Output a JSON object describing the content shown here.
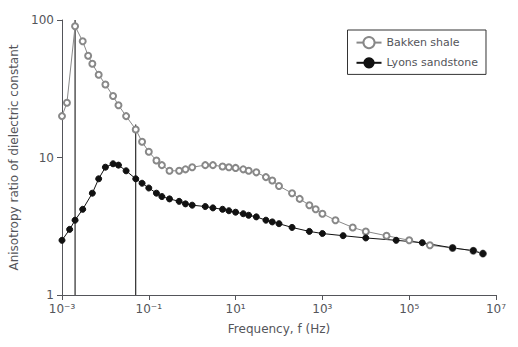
{
  "chart_data": {
    "type": "line",
    "xlabel": "Frequency, f (Hz)",
    "ylabel": "Anisotropy ratio of dielectric constant",
    "log": true,
    "grid": false,
    "legend": "upper right",
    "xlim": [
      0.001,
      10000000
    ],
    "ylim": [
      1,
      100
    ],
    "xticks": [
      {
        "value": 0.001,
        "label": "10⁻³"
      },
      {
        "value": 0.1,
        "label": "10⁻¹"
      },
      {
        "value": 10,
        "label": "10¹"
      },
      {
        "value": 1000,
        "label": "10³"
      },
      {
        "value": 100000,
        "label": "10⁵"
      },
      {
        "value": 10000000,
        "label": "10⁷"
      }
    ],
    "yticks": [
      1,
      10,
      100
    ],
    "series": [
      {
        "name": "Bakken shale",
        "color": "#888888",
        "marker": "open circle",
        "x": [
          0.001,
          0.0013,
          0.002,
          0.003,
          0.004,
          0.005,
          0.007,
          0.01,
          0.015,
          0.02,
          0.03,
          0.05,
          0.07,
          0.1,
          0.15,
          0.2,
          0.3,
          0.5,
          0.7,
          1.0,
          2.0,
          3.0,
          5.0,
          7.0,
          10.0,
          15.0,
          20.0,
          30.0,
          50.0,
          70.0,
          100.0,
          200.0,
          300.0,
          500.0,
          700.0,
          1000.0,
          2000.0,
          5000.0,
          10000.0,
          30000.0,
          100000.0,
          300000.0,
          1000000.0,
          3000000.0,
          5000000.0
        ],
        "values": [
          20.0,
          25.0,
          90.0,
          70.0,
          55.0,
          48.0,
          40.0,
          34.0,
          28.0,
          24.0,
          20.0,
          16.0,
          13.0,
          11.0,
          9.5,
          8.8,
          8.0,
          8.0,
          8.2,
          8.5,
          8.8,
          8.8,
          8.6,
          8.5,
          8.4,
          8.2,
          8.0,
          7.8,
          7.2,
          6.8,
          6.2,
          5.5,
          5.0,
          4.5,
          4.2,
          3.9,
          3.5,
          3.1,
          2.9,
          2.7,
          2.5,
          2.3,
          2.2,
          2.1,
          2.0
        ]
      },
      {
        "name": "Lyons sandstone",
        "color": "#111111",
        "marker": "circle",
        "x": [
          0.001,
          0.0015,
          0.002,
          0.003,
          0.005,
          0.007,
          0.01,
          0.015,
          0.02,
          0.03,
          0.05,
          0.07,
          0.1,
          0.15,
          0.2,
          0.3,
          0.5,
          0.7,
          1.0,
          2.0,
          3.0,
          5.0,
          7.0,
          10.0,
          15.0,
          20.0,
          30.0,
          50.0,
          70.0,
          100.0,
          200.0,
          500.0,
          1000.0,
          3000.0,
          10000.0,
          50000.0,
          200000.0,
          1000000.0,
          3000000.0,
          5000000.0
        ],
        "values": [
          2.5,
          3.0,
          3.5,
          4.2,
          5.5,
          7.0,
          8.5,
          9.0,
          8.8,
          8.0,
          7.0,
          6.5,
          6.0,
          5.5,
          5.2,
          5.0,
          4.8,
          4.6,
          4.5,
          4.4,
          4.3,
          4.2,
          4.1,
          4.0,
          3.9,
          3.8,
          3.7,
          3.5,
          3.4,
          3.3,
          3.1,
          2.9,
          2.8,
          2.7,
          2.6,
          2.5,
          2.4,
          2.2,
          2.1,
          2.0
        ]
      }
    ],
    "vlines": [
      {
        "x": 0.002,
        "ymin": 1,
        "ymax": 100,
        "color": "#000000"
      },
      {
        "x": 0.05,
        "ymin": 1,
        "ymax": 17.378008287493753,
        "color": "#000000"
      }
    ]
  }
}
